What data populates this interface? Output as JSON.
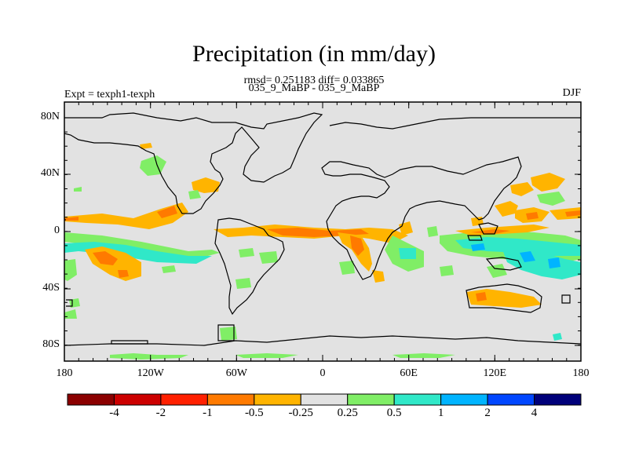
{
  "header": {
    "title": "Precipitation (in mm/day)",
    "stats": "rmsd= 0.251183 diff= 0.033865",
    "cases": "035_9_MaBP - 035_9_MaBP",
    "expt": "Expt = texph1-texph",
    "season": "DJF"
  },
  "axes": {
    "lat_ticks": [
      "80N",
      "40N",
      "0",
      "40S",
      "80S"
    ],
    "lon_ticks": [
      "180",
      "120W",
      "60W",
      "0",
      "60E",
      "120E",
      "180"
    ]
  },
  "colorbar": {
    "colors": [
      "#8b0000",
      "#cc0000",
      "#ff2000",
      "#ff7a00",
      "#ffb400",
      "#e2e2e2",
      "#80ee66",
      "#30e8c8",
      "#00b4ff",
      "#0046ff",
      "#00007a"
    ],
    "labels": [
      "-4",
      "-2",
      "-1",
      "-0.5",
      "-0.25",
      "0.25",
      "0.5",
      "1",
      "2",
      "4"
    ]
  }
}
